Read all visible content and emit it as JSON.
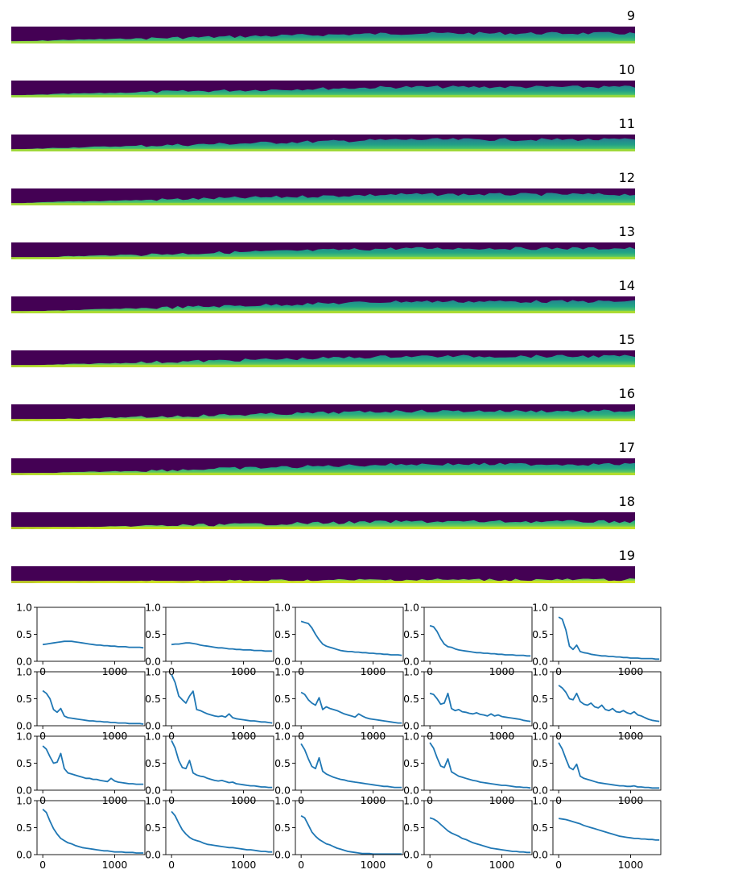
{
  "chart_data": [
    {
      "type": "heatmap",
      "description": "Row-spectrogram strips, one per layer (viridis colormap)",
      "colormap": "viridis",
      "panels": [
        {
          "title": "9",
          "front_start": 0.85,
          "front_end": 0.4,
          "rise": 0.12
        },
        {
          "title": "10",
          "front_start": 0.85,
          "front_end": 0.38,
          "rise": 0.12
        },
        {
          "title": "11",
          "front_start": 0.85,
          "front_end": 0.3,
          "rise": 0.15
        },
        {
          "title": "12",
          "front_start": 0.85,
          "front_end": 0.35,
          "rise": 0.18
        },
        {
          "title": "13",
          "front_start": 0.9,
          "front_end": 0.35,
          "rise": 0.22
        },
        {
          "title": "14",
          "front_start": 0.9,
          "front_end": 0.3,
          "rise": 0.25
        },
        {
          "title": "15",
          "front_start": 0.9,
          "front_end": 0.35,
          "rise": 0.3
        },
        {
          "title": "16",
          "front_start": 0.92,
          "front_end": 0.4,
          "rise": 0.35
        },
        {
          "title": "17",
          "front_start": 0.92,
          "front_end": 0.35,
          "rise": 0.3
        },
        {
          "title": "18",
          "front_start": 0.95,
          "front_end": 0.55,
          "rise": 0.4
        },
        {
          "title": "19",
          "front_start": 0.95,
          "front_end": 0.8,
          "rise": 0.5
        }
      ]
    },
    {
      "type": "line",
      "description": "Grid of 4x5 line plots",
      "color": "#1f77b4",
      "xlim": [
        -80,
        1420
      ],
      "ylim": [
        0,
        1
      ],
      "xticks": [
        "0",
        "1000"
      ],
      "xtick_values": [
        0,
        1000
      ],
      "yticks": [
        "0.0",
        "0.5",
        "1.0"
      ],
      "ytick_values": [
        0,
        0.5,
        1.0
      ],
      "x": [
        0,
        50,
        100,
        150,
        200,
        250,
        300,
        350,
        400,
        450,
        500,
        550,
        600,
        650,
        700,
        750,
        800,
        850,
        900,
        950,
        1000,
        1050,
        1100,
        1150,
        1200,
        1250,
        1300,
        1350,
        1400
      ],
      "series": [
        {
          "values": [
            0.31,
            0.32,
            0.33,
            0.34,
            0.35,
            0.36,
            0.37,
            0.37,
            0.37,
            0.36,
            0.35,
            0.34,
            0.33,
            0.32,
            0.31,
            0.3,
            0.3,
            0.29,
            0.29,
            0.28,
            0.28,
            0.27,
            0.27,
            0.27,
            0.26,
            0.26,
            0.26,
            0.26,
            0.25
          ]
        },
        {
          "values": [
            0.31,
            0.32,
            0.32,
            0.33,
            0.34,
            0.34,
            0.33,
            0.32,
            0.3,
            0.29,
            0.28,
            0.27,
            0.26,
            0.25,
            0.25,
            0.24,
            0.23,
            0.23,
            0.22,
            0.22,
            0.21,
            0.21,
            0.21,
            0.2,
            0.2,
            0.2,
            0.19,
            0.19,
            0.19
          ]
        },
        {
          "values": [
            0.74,
            0.72,
            0.7,
            0.62,
            0.5,
            0.4,
            0.32,
            0.28,
            0.26,
            0.24,
            0.22,
            0.2,
            0.19,
            0.18,
            0.18,
            0.17,
            0.17,
            0.16,
            0.16,
            0.15,
            0.15,
            0.14,
            0.14,
            0.13,
            0.13,
            0.12,
            0.12,
            0.12,
            0.11
          ]
        },
        {
          "values": [
            0.66,
            0.64,
            0.55,
            0.42,
            0.32,
            0.27,
            0.26,
            0.23,
            0.21,
            0.2,
            0.19,
            0.18,
            0.17,
            0.16,
            0.16,
            0.15,
            0.15,
            0.14,
            0.14,
            0.13,
            0.13,
            0.12,
            0.12,
            0.12,
            0.11,
            0.11,
            0.11,
            0.1,
            0.1
          ]
        },
        {
          "values": [
            0.82,
            0.78,
            0.58,
            0.28,
            0.22,
            0.3,
            0.18,
            0.16,
            0.15,
            0.13,
            0.12,
            0.11,
            0.1,
            0.1,
            0.09,
            0.09,
            0.08,
            0.08,
            0.07,
            0.07,
            0.06,
            0.06,
            0.06,
            0.05,
            0.05,
            0.05,
            0.05,
            0.04,
            0.04
          ]
        },
        {
          "values": [
            0.65,
            0.6,
            0.5,
            0.3,
            0.25,
            0.32,
            0.18,
            0.15,
            0.14,
            0.13,
            0.12,
            0.11,
            0.1,
            0.09,
            0.09,
            0.08,
            0.08,
            0.07,
            0.07,
            0.06,
            0.06,
            0.05,
            0.05,
            0.05,
            0.04,
            0.04,
            0.04,
            0.04,
            0.03
          ]
        },
        {
          "values": [
            0.95,
            0.8,
            0.55,
            0.48,
            0.42,
            0.55,
            0.64,
            0.3,
            0.28,
            0.25,
            0.22,
            0.2,
            0.18,
            0.17,
            0.18,
            0.16,
            0.22,
            0.15,
            0.13,
            0.12,
            0.11,
            0.1,
            0.09,
            0.09,
            0.08,
            0.07,
            0.07,
            0.06,
            0.05
          ]
        },
        {
          "values": [
            0.62,
            0.58,
            0.48,
            0.42,
            0.38,
            0.52,
            0.3,
            0.35,
            0.32,
            0.3,
            0.28,
            0.25,
            0.22,
            0.2,
            0.18,
            0.16,
            0.22,
            0.18,
            0.15,
            0.13,
            0.12,
            0.11,
            0.1,
            0.09,
            0.08,
            0.07,
            0.06,
            0.05,
            0.05
          ]
        },
        {
          "values": [
            0.6,
            0.58,
            0.5,
            0.4,
            0.42,
            0.6,
            0.32,
            0.28,
            0.3,
            0.26,
            0.25,
            0.23,
            0.22,
            0.24,
            0.21,
            0.2,
            0.18,
            0.22,
            0.18,
            0.2,
            0.17,
            0.16,
            0.15,
            0.14,
            0.13,
            0.12,
            0.1,
            0.09,
            0.08
          ]
        },
        {
          "values": [
            0.75,
            0.7,
            0.62,
            0.5,
            0.48,
            0.6,
            0.45,
            0.4,
            0.38,
            0.42,
            0.35,
            0.33,
            0.38,
            0.3,
            0.28,
            0.32,
            0.26,
            0.25,
            0.28,
            0.24,
            0.22,
            0.26,
            0.2,
            0.18,
            0.15,
            0.12,
            0.1,
            0.09,
            0.08
          ]
        },
        {
          "values": [
            0.82,
            0.76,
            0.62,
            0.5,
            0.52,
            0.68,
            0.4,
            0.32,
            0.3,
            0.28,
            0.26,
            0.24,
            0.22,
            0.22,
            0.2,
            0.2,
            0.18,
            0.17,
            0.16,
            0.22,
            0.17,
            0.15,
            0.14,
            0.13,
            0.12,
            0.12,
            0.11,
            0.11,
            0.11
          ]
        },
        {
          "values": [
            0.92,
            0.78,
            0.55,
            0.42,
            0.4,
            0.55,
            0.32,
            0.28,
            0.26,
            0.25,
            0.22,
            0.2,
            0.18,
            0.17,
            0.18,
            0.16,
            0.14,
            0.15,
            0.12,
            0.11,
            0.1,
            0.09,
            0.08,
            0.08,
            0.07,
            0.06,
            0.06,
            0.05,
            0.05
          ]
        },
        {
          "values": [
            0.86,
            0.75,
            0.58,
            0.44,
            0.4,
            0.6,
            0.35,
            0.3,
            0.27,
            0.24,
            0.22,
            0.2,
            0.19,
            0.17,
            0.16,
            0.15,
            0.14,
            0.13,
            0.12,
            0.11,
            0.1,
            0.09,
            0.08,
            0.07,
            0.07,
            0.06,
            0.05,
            0.05,
            0.05
          ]
        },
        {
          "values": [
            0.88,
            0.78,
            0.6,
            0.45,
            0.42,
            0.58,
            0.34,
            0.3,
            0.26,
            0.24,
            0.22,
            0.2,
            0.18,
            0.17,
            0.15,
            0.14,
            0.13,
            0.12,
            0.11,
            0.1,
            0.09,
            0.09,
            0.08,
            0.07,
            0.06,
            0.06,
            0.05,
            0.05,
            0.04
          ]
        },
        {
          "values": [
            0.88,
            0.76,
            0.58,
            0.42,
            0.38,
            0.48,
            0.26,
            0.22,
            0.2,
            0.18,
            0.16,
            0.14,
            0.13,
            0.12,
            0.11,
            0.1,
            0.09,
            0.08,
            0.08,
            0.07,
            0.07,
            0.08,
            0.06,
            0.06,
            0.05,
            0.05,
            0.04,
            0.04,
            0.04
          ]
        },
        {
          "values": [
            0.84,
            0.78,
            0.62,
            0.48,
            0.38,
            0.3,
            0.26,
            0.22,
            0.2,
            0.17,
            0.15,
            0.13,
            0.12,
            0.11,
            0.1,
            0.09,
            0.08,
            0.07,
            0.07,
            0.06,
            0.05,
            0.05,
            0.05,
            0.04,
            0.04,
            0.04,
            0.03,
            0.03,
            0.03
          ]
        },
        {
          "values": [
            0.8,
            0.72,
            0.58,
            0.46,
            0.38,
            0.32,
            0.28,
            0.26,
            0.24,
            0.21,
            0.19,
            0.18,
            0.17,
            0.16,
            0.15,
            0.14,
            0.13,
            0.13,
            0.12,
            0.11,
            0.1,
            0.09,
            0.09,
            0.08,
            0.07,
            0.06,
            0.06,
            0.05,
            0.05
          ]
        },
        {
          "values": [
            0.72,
            0.68,
            0.55,
            0.42,
            0.34,
            0.28,
            0.24,
            0.2,
            0.18,
            0.15,
            0.12,
            0.1,
            0.08,
            0.06,
            0.05,
            0.04,
            0.03,
            0.02,
            0.02,
            0.02,
            0.01,
            0.01,
            0.01,
            0.01,
            0.01,
            0.01,
            0.01,
            0.01,
            0.01
          ]
        },
        {
          "values": [
            0.68,
            0.66,
            0.62,
            0.56,
            0.5,
            0.44,
            0.4,
            0.37,
            0.34,
            0.3,
            0.28,
            0.25,
            0.22,
            0.2,
            0.18,
            0.16,
            0.14,
            0.12,
            0.11,
            0.1,
            0.09,
            0.08,
            0.07,
            0.06,
            0.06,
            0.05,
            0.05,
            0.04,
            0.04
          ]
        },
        {
          "values": [
            0.67,
            0.66,
            0.65,
            0.63,
            0.61,
            0.59,
            0.57,
            0.54,
            0.52,
            0.5,
            0.48,
            0.46,
            0.44,
            0.42,
            0.4,
            0.38,
            0.36,
            0.34,
            0.33,
            0.32,
            0.31,
            0.3,
            0.3,
            0.29,
            0.29,
            0.28,
            0.28,
            0.27,
            0.27
          ]
        }
      ]
    }
  ]
}
